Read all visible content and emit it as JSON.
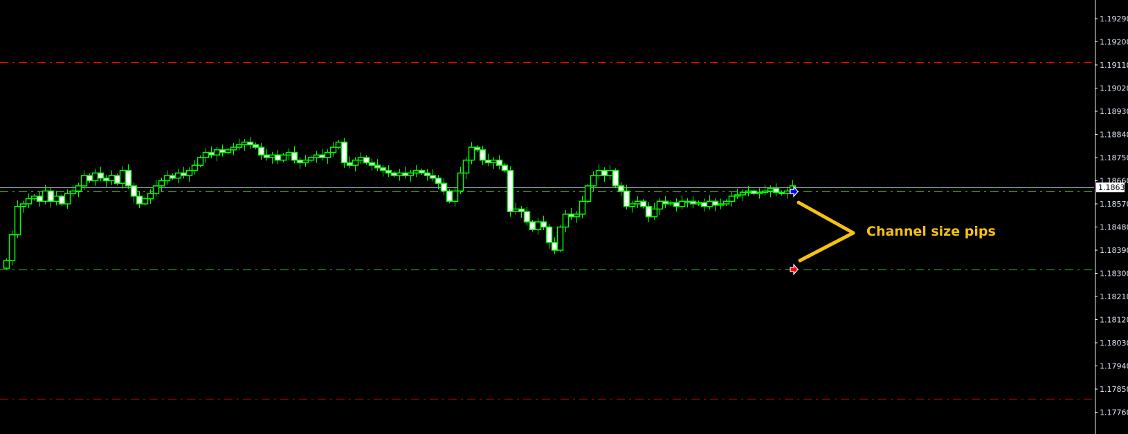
{
  "chart_data": {
    "type": "candlestick",
    "title": "",
    "colors": {
      "background": "#000000",
      "candle_outline": "#00ff00",
      "bull_body": "#000000",
      "bear_body": "#ffffff",
      "axis": "#ffffff",
      "tick_text": "#dfe8f5"
    },
    "ylim": [
      1.177,
      1.1933
    ],
    "y_ticks": [
      "1.19290",
      "1.19200",
      "1.19110",
      "1.19020",
      "1.18930",
      "1.18840",
      "1.18750",
      "1.18660",
      "1.18570",
      "1.18480",
      "1.18390",
      "1.18300",
      "1.18210",
      "1.18120",
      "1.18030",
      "1.17940",
      "1.17850",
      "1.17760"
    ],
    "first_open": 1.1832,
    "closes": [
      1.1835,
      1.1845,
      1.1856,
      1.1857,
      1.1859,
      1.186,
      1.1858,
      1.1862,
      1.1858,
      1.186,
      1.1857,
      1.1861,
      1.1862,
      1.1864,
      1.1868,
      1.1866,
      1.1869,
      1.1867,
      1.1866,
      1.1868,
      1.1865,
      1.187,
      1.1864,
      1.186,
      1.1857,
      1.1859,
      1.1861,
      1.1864,
      1.1866,
      1.1868,
      1.1867,
      1.1869,
      1.1868,
      1.187,
      1.1872,
      1.1875,
      1.1877,
      1.1876,
      1.1878,
      1.1877,
      1.1878,
      1.1879,
      1.188,
      1.1881,
      1.188,
      1.1879,
      1.1876,
      1.1875,
      1.1876,
      1.1874,
      1.1876,
      1.1877,
      1.1874,
      1.1873,
      1.1874,
      1.1875,
      1.1876,
      1.1875,
      1.1877,
      1.1879,
      1.1881,
      1.1873,
      1.1872,
      1.1874,
      1.1875,
      1.1873,
      1.1872,
      1.1871,
      1.187,
      1.1869,
      1.1868,
      1.1869,
      1.1868,
      1.1869,
      1.187,
      1.1869,
      1.1868,
      1.1867,
      1.1865,
      1.1862,
      1.1858,
      1.1862,
      1.1869,
      1.1874,
      1.1879,
      1.1878,
      1.1874,
      1.1873,
      1.1874,
      1.1872,
      1.187,
      1.1854,
      1.1855,
      1.1854,
      1.185,
      1.1847,
      1.185,
      1.1848,
      1.1842,
      1.1839,
      1.1848,
      1.1853,
      1.1852,
      1.1853,
      1.1858,
      1.1864,
      1.1868,
      1.187,
      1.1868,
      1.187,
      1.1864,
      1.1862,
      1.1856,
      1.1857,
      1.1858,
      1.1856,
      1.1852,
      1.1855,
      1.1858,
      1.1857,
      1.18575,
      1.1856,
      1.1858,
      1.1858,
      1.1857,
      1.18575,
      1.1856,
      1.1858,
      1.18565,
      1.1857,
      1.1858,
      1.186,
      1.18605,
      1.18615,
      1.1862,
      1.1861,
      1.18615,
      1.1862,
      1.1863,
      1.18615,
      1.1861,
      1.1862,
      1.1864
    ],
    "levels": [
      {
        "price": 1.19121,
        "style": "dash-dot",
        "color": "#ff0000"
      },
      {
        "price": 1.18618,
        "style": "dash-dot",
        "color": "#32cd32"
      },
      {
        "price": 1.18315,
        "style": "dash-dot",
        "color": "#32cd32"
      },
      {
        "price": 1.17812,
        "style": "dash-dot",
        "color": "#ff0000"
      },
      {
        "price": 1.18634,
        "style": "solid",
        "color": "#8c9aa8"
      }
    ],
    "current_price_label": "1.18634",
    "markers": [
      {
        "icon": "blue-arrow-icon",
        "price": 1.18618,
        "color": "#0000ff"
      },
      {
        "icon": "red-arrow-icon",
        "price": 1.18315,
        "color": "#ff0000"
      }
    ],
    "annotation": {
      "text": "Channel size pips",
      "color": "#f5c211"
    }
  }
}
